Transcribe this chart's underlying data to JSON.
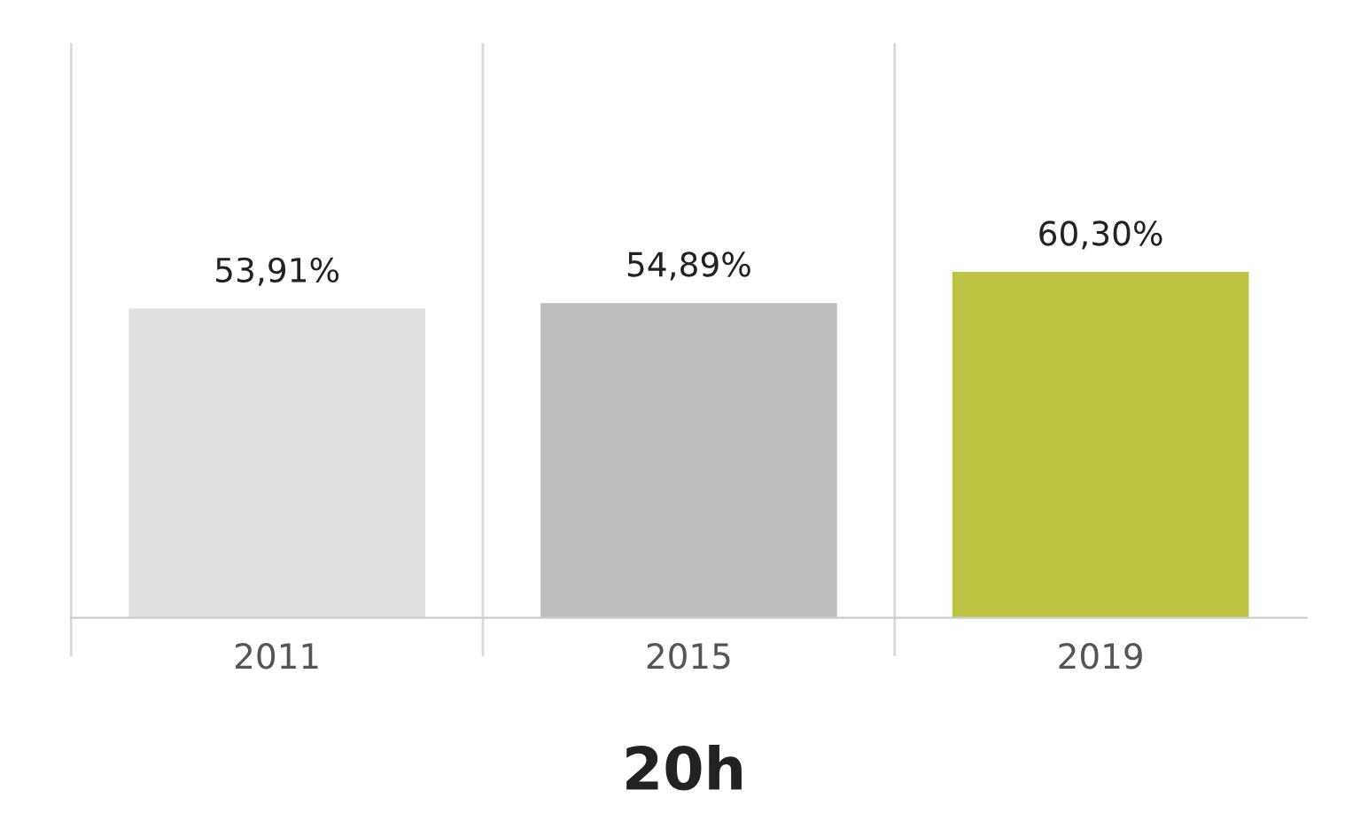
{
  "chart_data": {
    "type": "bar",
    "title": "20h",
    "categories": [
      "2011",
      "2015",
      "2019"
    ],
    "values": [
      53.91,
      54.89,
      60.3
    ],
    "colors": [
      "#e0e0e0",
      "#bdbdbd",
      "#bdc443"
    ],
    "value_labels": [
      "53,91%",
      "54,89%",
      "60,30%"
    ],
    "ylim": [
      0,
      100
    ],
    "grid": "x",
    "tick_labels": "x"
  }
}
